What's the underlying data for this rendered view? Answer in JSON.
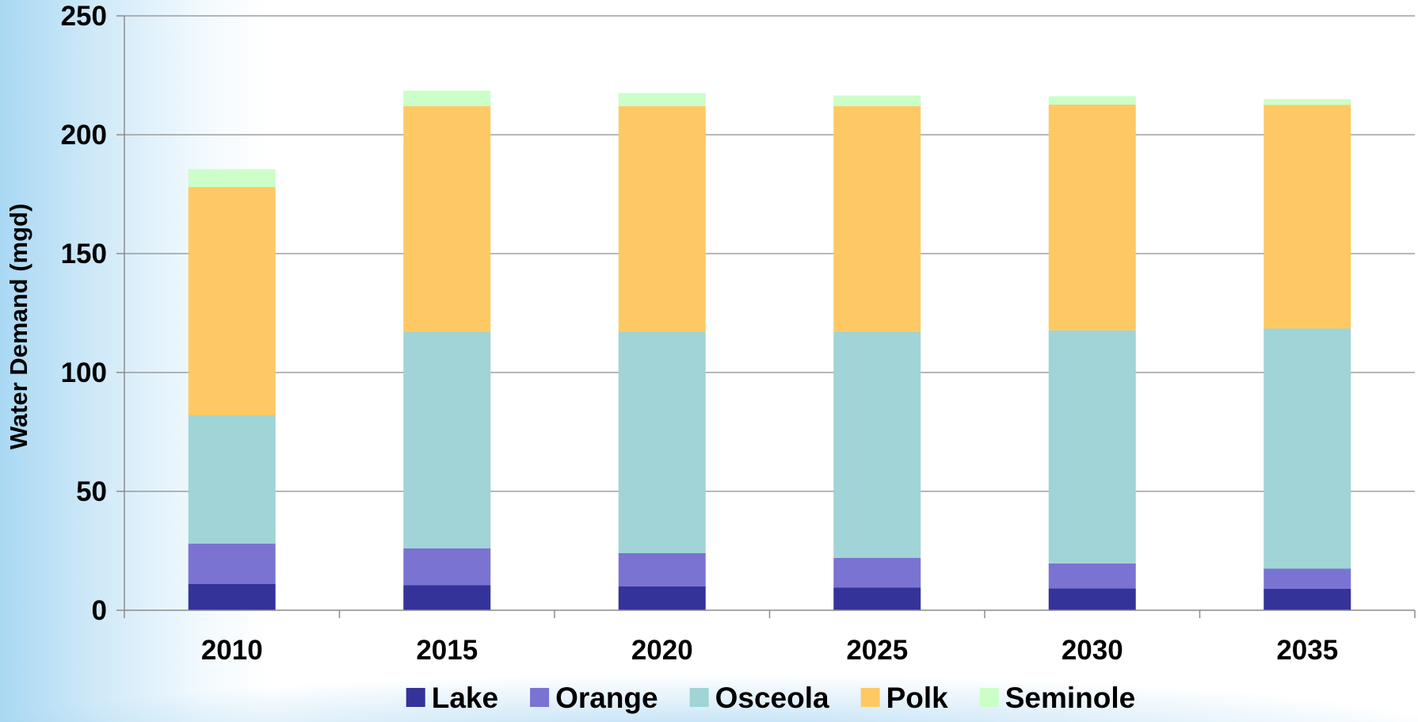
{
  "chart_data": {
    "type": "bar",
    "stacked": true,
    "ylabel": "Water Demand (mgd)",
    "xlabel": "",
    "ylim": [
      0,
      250
    ],
    "yticks": [
      0,
      50,
      100,
      150,
      200,
      250
    ],
    "grid": true,
    "legend": "bottom",
    "categories": [
      "2010",
      "2015",
      "2020",
      "2025",
      "2030",
      "2035"
    ],
    "series": [
      {
        "name": "Lake",
        "color": "#33339a",
        "values": [
          11,
          10.5,
          10,
          9.5,
          9.2,
          9
        ]
      },
      {
        "name": "Orange",
        "color": "#7b73d2",
        "values": [
          17,
          15.5,
          14,
          12.5,
          10.5,
          8.5
        ]
      },
      {
        "name": "Osceola",
        "color": "#a0d4d6",
        "values": [
          54,
          91,
          93,
          95,
          98,
          101
        ]
      },
      {
        "name": "Polk",
        "color": "#fec964",
        "values": [
          96,
          95,
          95,
          95,
          95,
          94
        ]
      },
      {
        "name": "Seminole",
        "color": "#ccfec8",
        "values": [
          7.5,
          6.5,
          5.5,
          4.5,
          3.5,
          2.5
        ]
      }
    ]
  }
}
